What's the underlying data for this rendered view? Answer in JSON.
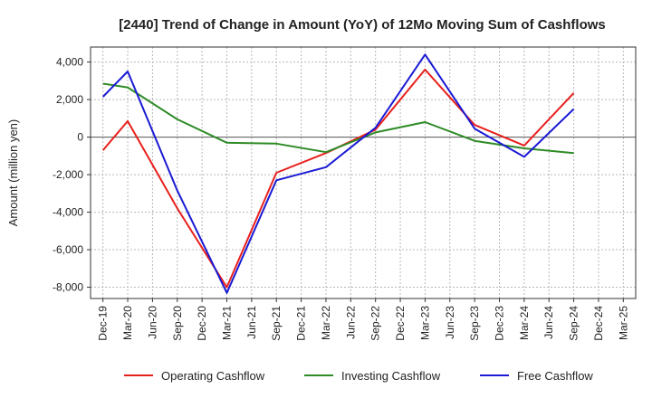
{
  "chart_data": {
    "type": "line",
    "title": "[2440]  Trend of Change in Amount (YoY) of 12Mo Moving Sum of Cashflows",
    "ylabel": "Amount (million yen)",
    "xlabel": "",
    "ylim": [
      -8600,
      4800
    ],
    "yticks": [
      4000,
      2000,
      0,
      -2000,
      -4000,
      -6000,
      -8000
    ],
    "ytick_labels": [
      "4,000",
      "2,000",
      "0",
      "-2,000",
      "-4,000",
      "-6,000",
      "-8,000"
    ],
    "categories": [
      "Dec-19",
      "Mar-20",
      "Jun-20",
      "Sep-20",
      "Dec-20",
      "Mar-21",
      "Jun-21",
      "Sep-21",
      "Dec-21",
      "Mar-22",
      "Jun-22",
      "Sep-22",
      "Dec-22",
      "Mar-23",
      "Jun-23",
      "Sep-23",
      "Dec-23",
      "Mar-24",
      "Jun-24",
      "Sep-24",
      "Dec-24",
      "Mar-25"
    ],
    "grid": true,
    "legend_position": "bottom",
    "series": [
      {
        "name": "Operating Cashflow",
        "color": "#e8201c",
        "values": [
          -700,
          850,
          null,
          -3800,
          null,
          -8000,
          null,
          -1900,
          null,
          -850,
          null,
          400,
          null,
          3600,
          null,
          650,
          null,
          -450,
          null,
          2350,
          null,
          null
        ]
      },
      {
        "name": "Investing Cashflow",
        "color": "#2e8b26",
        "values": [
          2850,
          2650,
          null,
          950,
          null,
          -300,
          null,
          -350,
          null,
          -800,
          null,
          250,
          null,
          800,
          null,
          -200,
          null,
          -600,
          null,
          -850,
          null,
          null
        ]
      },
      {
        "name": "Free Cashflow",
        "color": "#1a1ad4",
        "values": [
          2150,
          3500,
          null,
          -2850,
          null,
          -8300,
          null,
          -2300,
          null,
          -1600,
          null,
          500,
          null,
          4400,
          null,
          450,
          null,
          -1050,
          null,
          1500,
          null,
          null
        ]
      }
    ]
  }
}
